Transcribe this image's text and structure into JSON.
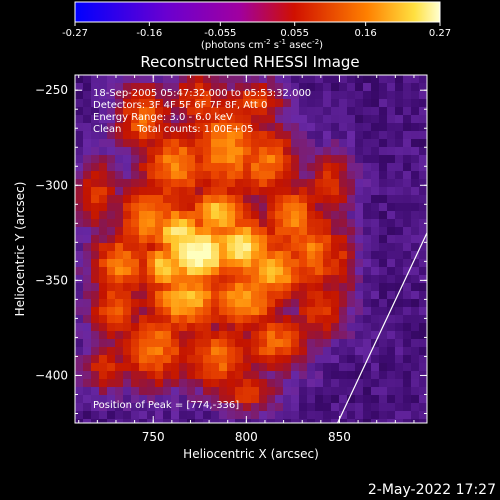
{
  "chart_data": {
    "type": "heatmap",
    "title": "Reconstructed RHESSI Image",
    "xlabel": "Heliocentric X (arcsec)",
    "ylabel": "Heliocentric Y (arcsec)",
    "xlim": [
      708,
      897
    ],
    "ylim": [
      -425,
      -242
    ],
    "x_ticks": [
      750,
      800,
      850
    ],
    "y_ticks": [
      -250,
      -300,
      -350,
      -400
    ],
    "colorbar": {
      "min": -0.27,
      "max": 0.27,
      "ticks": [
        "-0.27",
        "-0.16",
        "-0.055",
        "0.055",
        "0.16",
        "0.27"
      ],
      "label_main": "(photons cm",
      "label_exp1": "-2",
      "label_mid": " s",
      "label_exp2": "-1",
      "label_mid2": " asec",
      "label_exp3": "-2",
      "label_end": ")"
    },
    "annotations": [
      "18-Sep-2005 05:47:32.000 to 05:53:32.000",
      "Detectors: 3F 4F 5F 6F 7F 8F, Att 0",
      "Energy Range: 3.0 - 6.0 keV",
      "Clean     Total counts: 1.00E+05"
    ],
    "peak_label": "Position of Peak = [774,-336]",
    "peak": [
      774,
      -336
    ],
    "limb_line": [
      [
        849,
        -425
      ],
      [
        897,
        -325
      ]
    ],
    "grid": false
  },
  "footer": {
    "date": "2-May-2022 17:27"
  }
}
